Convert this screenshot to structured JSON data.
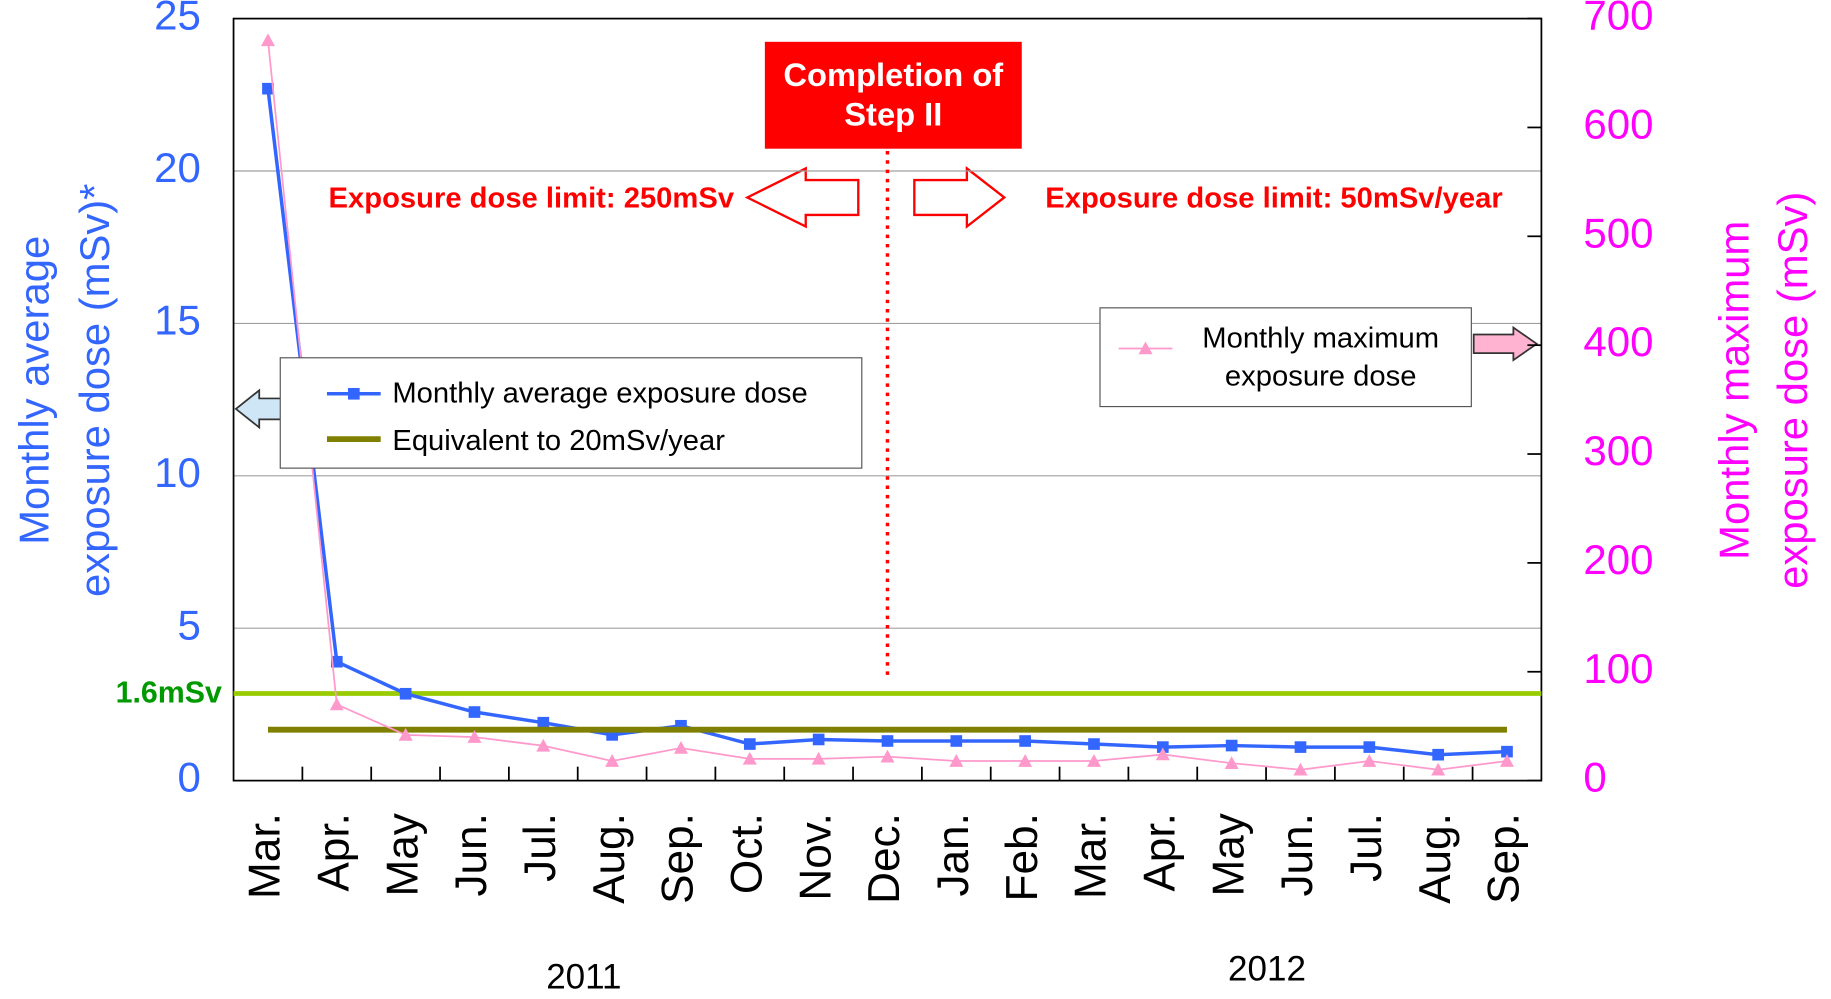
{
  "chart_data": {
    "type": "line",
    "categories": [
      "Mar.",
      "Apr.",
      "May",
      "Jun.",
      "Jul.",
      "Aug.",
      "Sep.",
      "Oct.",
      "Nov.",
      "Dec.",
      "Jan.",
      "Feb.",
      "Mar.",
      "Apr.",
      "May",
      "Jun.",
      "Jul.",
      "Aug.",
      "Sep."
    ],
    "years": [
      "2011",
      "2012"
    ],
    "ylabel": [
      "Monthly average",
      "exposure dose (mSv)*"
    ],
    "y2label": [
      "Monthly maximum",
      "exposure dose (mSv)"
    ],
    "ylim": [
      0,
      25
    ],
    "yticks": [
      0,
      5,
      10,
      15,
      20,
      25
    ],
    "y2lim": [
      0,
      700
    ],
    "y2ticks": [
      0,
      100,
      200,
      300,
      400,
      500,
      600,
      700
    ],
    "grid": true,
    "series": [
      {
        "name": "Monthly average exposure dose",
        "color": "#3366ff",
        "marker": "square",
        "values": [
          22.7,
          3.9,
          2.85,
          2.25,
          1.9,
          1.5,
          1.8,
          1.2,
          1.35,
          1.3,
          1.3,
          1.3,
          1.2,
          1.1,
          1.15,
          1.1,
          1.1,
          0.85,
          0.95
        ]
      },
      {
        "name": "Equivalent to 20mSv/year",
        "color": "#808000",
        "marker": "none",
        "values": [
          1.67,
          1.67,
          1.67,
          1.67,
          1.67,
          1.67,
          1.67,
          1.67,
          1.67,
          1.67,
          1.67,
          1.67,
          1.67,
          1.67,
          1.67,
          1.67,
          1.67,
          1.67,
          1.67
        ]
      },
      {
        "name": "Monthly maximum exposure dose",
        "color": "#ff99cc",
        "marker": "triangle",
        "axis": "y2",
        "values": [
          680,
          70,
          42,
          40,
          32,
          18,
          30,
          20,
          20,
          22,
          18,
          18,
          18,
          24,
          16,
          10,
          18,
          10,
          18
        ]
      }
    ],
    "reference_label": "1.6mSv",
    "step_label": "Completion of Step II",
    "limit_before": "Exposure dose limit: 250mSv",
    "limit_after": "Exposure dose limit: 50mSv/year"
  }
}
